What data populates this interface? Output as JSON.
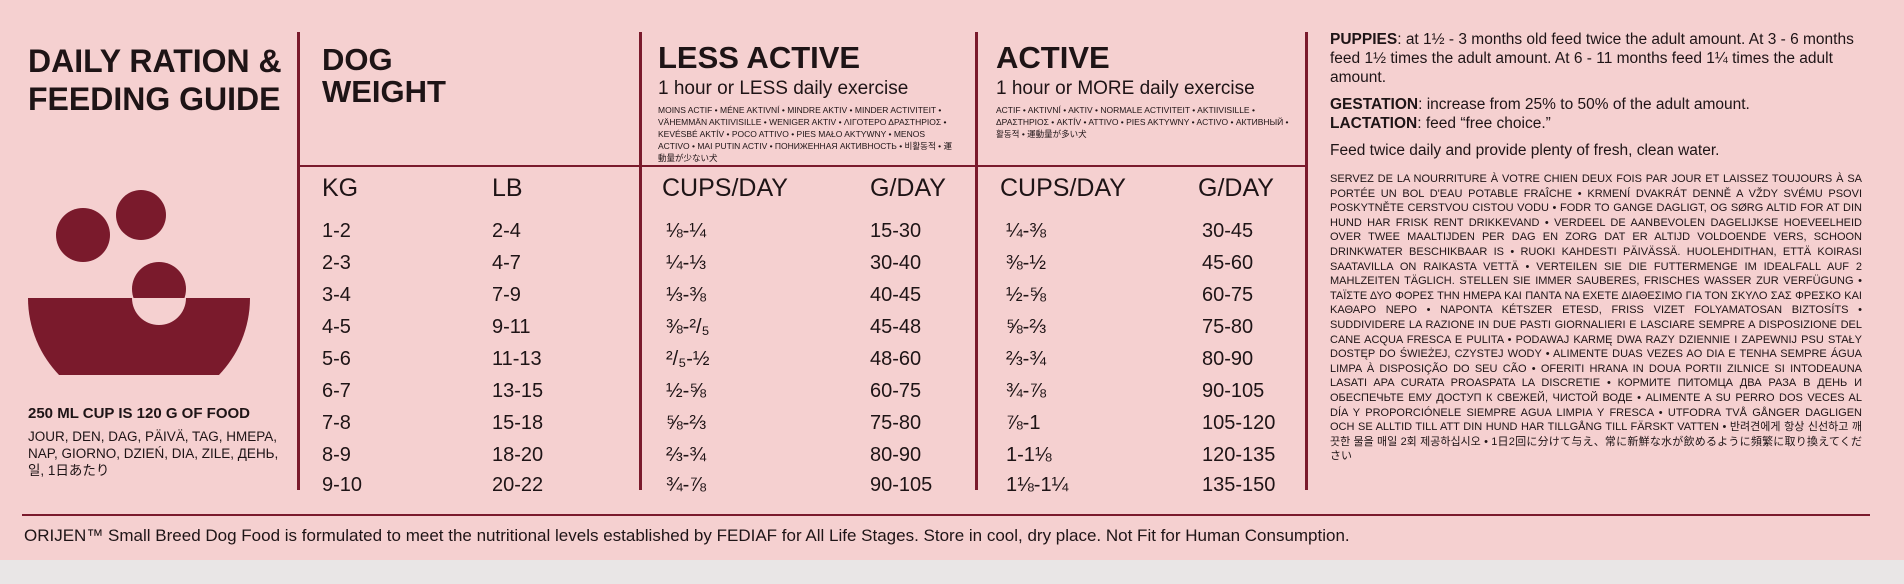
{
  "guide_title": [
    "DAILY RATION &",
    "FEEDING GUIDE"
  ],
  "cup_note": "250 ML CUP IS 120 G OF FOOD",
  "cup_note_languages": "JOUR, DEN, DAG, PÄIVÄ, TAG, ΗΜΕΡΑ, NAP, GIORNO, DZIEŃ, DIA, ZILE, ДЕНЬ, 일, 1日あたり",
  "dog_weight": {
    "title": [
      "DOG",
      "WEIGHT"
    ],
    "kg_label": "KG",
    "lb_label": "LB"
  },
  "less_active": {
    "title": "LESS ACTIVE",
    "subtitle": "1 hour or LESS daily exercise",
    "translations": "MOINS ACTIF • MÉNE AKTIVNÍ • MINDRE AKTIV • MINDER ACTIVITEIT • VÄHEMMÄN AKTIIVISILLE • WENIGER AKTIV • ΛΙΓΟΤΕΡΟ ΔΡΑΣΤΗΡΙΟΣ • KEVÉSBÉ AKTÍV • POCO ATTIVO • PIES MAŁO AKTYWNY • MENOS ACTIVO • MAI PUTIN ACTIV • ПОНИЖЕННАЯ АКТИВНОСТЬ • 비활동적 • 運動量が少ない犬",
    "cups_label": "CUPS/DAY",
    "g_label": "G/DAY"
  },
  "active": {
    "title": "ACTIVE",
    "subtitle": "1 hour or MORE daily exercise",
    "translations": "ACTIF • AKTIVNÍ • AKTIV • NORMALE ACTIVITEIT • AKTIIVISILLE • ΔΡΑΣΤΗΡΙΟΣ • AKTÍV • ATTIVO • PIES AKTYWNY • ACTIVO • АКТИВНЫЙ • 활동적 • 運動量が多い犬",
    "cups_label": "CUPS/DAY",
    "g_label": "G/DAY"
  },
  "rows": [
    {
      "kg": "1-2",
      "lb": "2-4",
      "la_cups": "⅛-¼",
      "la_g": "15-30",
      "a_cups": "¼-⅜",
      "a_g": "30-45"
    },
    {
      "kg": "2-3",
      "lb": "4-7",
      "la_cups": "¼-⅓",
      "la_g": "30-40",
      "a_cups": "⅜-½",
      "a_g": "45-60"
    },
    {
      "kg": "3-4",
      "lb": "7-9",
      "la_cups": "⅓-⅜",
      "la_g": "40-45",
      "a_cups": "½-⅝",
      "a_g": "60-75"
    },
    {
      "kg": "4-5",
      "lb": "9-11",
      "la_cups": "⅜-²/₅",
      "la_g": "45-48",
      "a_cups": "⅝-⅔",
      "a_g": "75-80"
    },
    {
      "kg": "5-6",
      "lb": "11-13",
      "la_cups": "²/₅-½",
      "la_g": "48-60",
      "a_cups": "⅔-¾",
      "a_g": "80-90"
    },
    {
      "kg": "6-7",
      "lb": "13-15",
      "la_cups": "½-⅝",
      "la_g": "60-75",
      "a_cups": "¾-⅞",
      "a_g": "90-105"
    },
    {
      "kg": "7-8",
      "lb": "15-18",
      "la_cups": "⅝-⅔",
      "la_g": "75-80",
      "a_cups": "⅞-1",
      "a_g": "105-120"
    },
    {
      "kg": "8-9",
      "lb": "18-20",
      "la_cups": "⅔-¾",
      "la_g": "80-90",
      "a_cups": "1-1⅛",
      "a_g": "120-135"
    },
    {
      "kg": "9-10",
      "lb": "20-22",
      "la_cups": "¾-⅞",
      "la_g": "90-105",
      "a_cups": "1⅛-1¼",
      "a_g": "135-150"
    }
  ],
  "notes": {
    "puppies_label": "PUPPIES",
    "puppies_text": ": at 1½ - 3 months old feed twice the adult amount. At 3 - 6 months feed 1½ times the adult amount. At 6 - 11 months feed 1¼ times the adult amount.",
    "gestation_label": "GESTATION",
    "gestation_text": ": increase from 25% to 50% of the adult amount.",
    "lactation_label": "LACTATION",
    "lactation_text": ": feed “free choice.”",
    "feed_twice": "Feed twice daily and provide plenty of fresh, clean water.",
    "multilingual": "SERVEZ DE LA NOURRITURE À VOTRE CHIEN DEUX FOIS PAR JOUR ET LAISSEZ TOUJOURS À SA PORTÉE UN BOL D'EAU POTABLE FRAÎCHE • KRMENÍ DVAKRÁT DENNĚ A VŽDY SVÉMU PSOVI POSKYTNĚTE CERSTVOU CISTOU VODU • FODR TO GANGE DAGLIGT, OG SØRG ALTID FOR AT DIN HUND HAR FRISK RENT DRIKKEVAND • VERDEEL DE AANBEVOLEN DAGELIJKSE HOEVEELHEID OVER TWEE MAALTIJDEN PER DAG EN ZORG DAT ER ALTIJD VOLDOENDE VERS, SCHOON DRINKWATER BESCHIKBAAR IS • RUOKI KAHDESTI PÄIVÄSSÄ. HUOLEHDITHAN, ETTÄ KOIRASI SAATAVILLA ON RAIKASTA VETTÄ • VERTEILEN SIE DIE FUTTERMENGE IM IDEALFALL AUF 2 MAHLZEITEN TÄGLICH. STELLEN SIE IMMER SAUBERES, FRISCHES WASSER ZUR VERFÜGUNG • ΤΑΪΣΤΕ ΔΥΟ ΦΟΡΕΣ ΤΗΝ ΗΜΕΡΑ ΚΑΙ ΠΑΝΤΑ ΝΑ ΕΧΕΤΕ ΔΙΑΘΕΣΙΜΟ ΓΙΑ ΤΟΝ ΣΚΥΛΟ ΣΑΣ ΦΡΕΣΚΟ ΚΑΙ ΚΑΘΑΡΟ ΝΕΡΟ • NAPONTA KÉTSZER ETESD, FRISS VIZET FOLYAMATOSAN BIZTOSÍTS • SUDDIVIDERE LA RAZIONE IN DUE PASTI GIORNALIERI E LASCIARE SEMPRE A DISPOSIZIONE DEL CANE ACQUA FRESCA E PULITA • PODAWAJ KARMĘ DWA RAZY DZIENNIE I ZAPEWNIJ PSU STAŁY DOSTĘP DO ŚWIEŻEJ, CZYSTEJ WODY • ALIMENTE DUAS VEZES AO DIA E TENHA SEMPRE ÁGUA LIMPA À DISPOSIÇÃO DO SEU CÃO • OFERITI HRANA IN DOUA PORTII ZILNICE SI INTODEAUNA LASATI APA CURATA PROASPATA LA DISCRETIE • КОРМИТЕ ПИТОМЦА ДВА РАЗА В ДЕНЬ И ОБЕСПЕЧЬТЕ ЕМУ ДОСТУП К СВЕЖЕЙ, ЧИСТОЙ ВОДЕ • ALIMENTE A SU PERRO DOS VECES AL DÍA Y PROPORCIÓNELE SIEMPRE AGUA LIMPIA Y FRESCA • UTFODRA TVÅ GÅNGER DAGLIGEN OCH SE ALLTID TILL ATT DIN HUND HAR TILLGÅNG TILL FÄRSKT VATTEN • 반려견에게 항상 신선하고 깨끗한 물을 매일 2회 제공하십시오 • 1日2回に分けて与え、常に新鮮な水が飲めるように頻繁に取り換えてください"
  },
  "footer": "ORIJEN™ Small Breed Dog Food is formulated to meet the nutritional levels established by FEDIAF for All Life Stages. Store in cool, dry place. Not Fit for Human Consumption.",
  "colors": {
    "background": "#f5d0d0",
    "accent": "#7a1a2c",
    "text": "#1e1416"
  }
}
